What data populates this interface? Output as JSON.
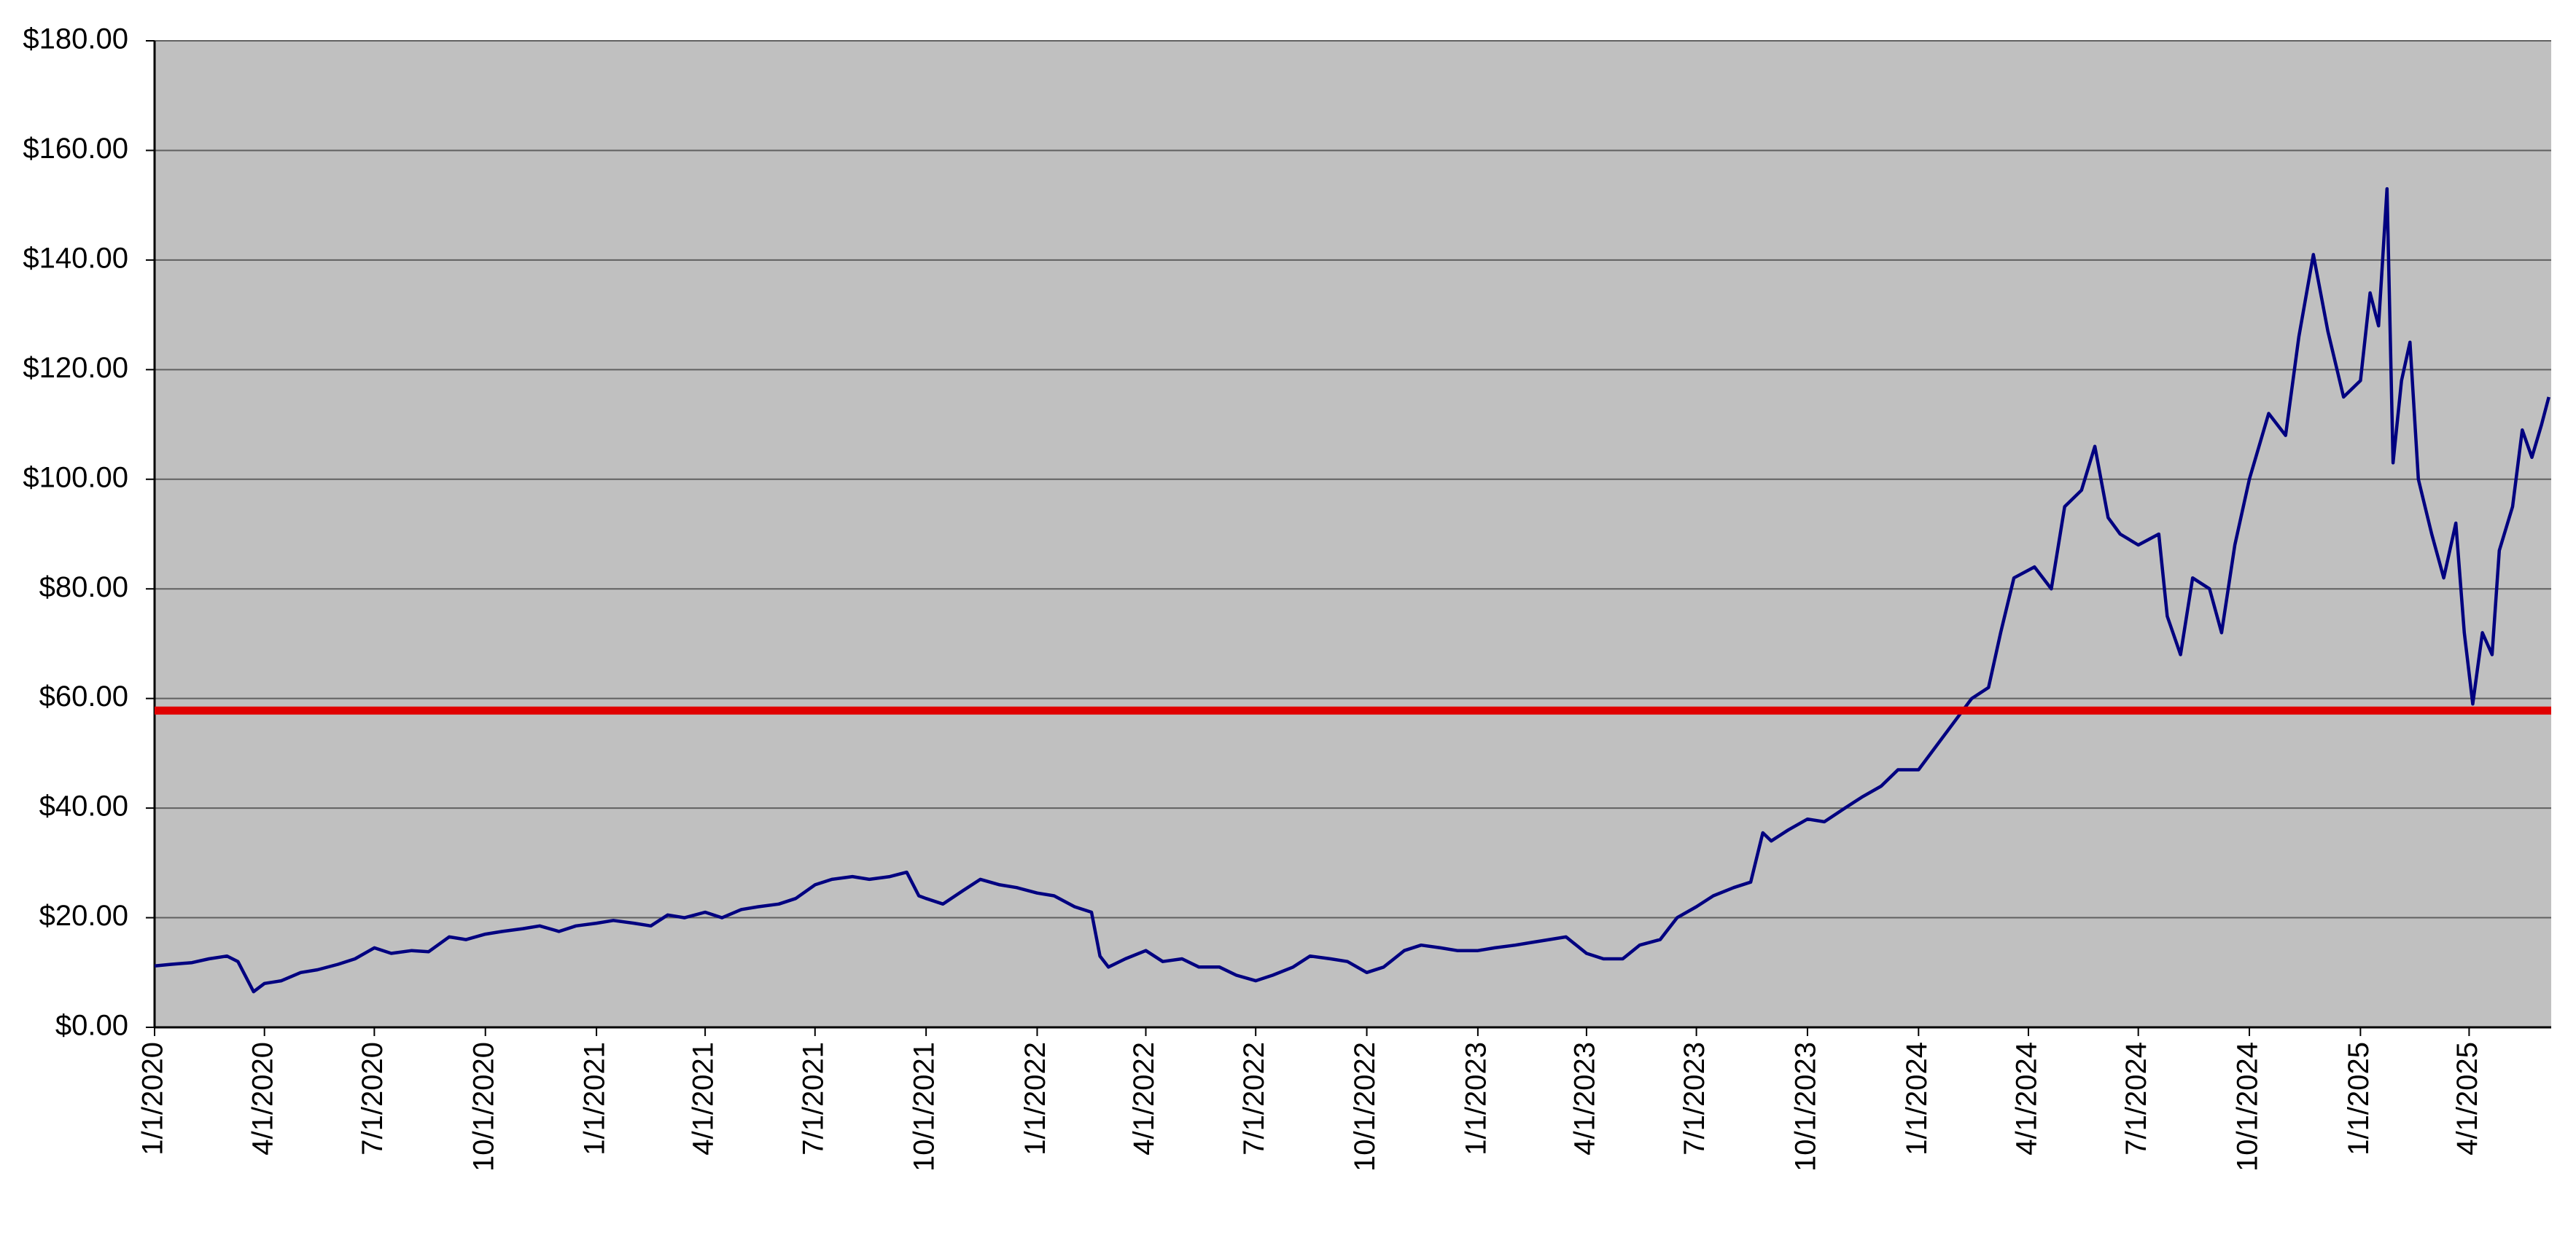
{
  "chart_data": {
    "type": "line",
    "x": [
      "1/1/2020",
      "1/15/2020",
      "2/1/2020",
      "2/15/2020",
      "3/1/2020",
      "3/10/2020",
      "3/23/2020",
      "4/1/2020",
      "4/15/2020",
      "5/1/2020",
      "5/15/2020",
      "6/1/2020",
      "6/15/2020",
      "7/1/2020",
      "7/15/2020",
      "8/1/2020",
      "8/15/2020",
      "9/1/2020",
      "9/15/2020",
      "10/1/2020",
      "10/15/2020",
      "11/1/2020",
      "11/15/2020",
      "12/1/2020",
      "12/15/2020",
      "1/1/2021",
      "1/15/2021",
      "2/1/2021",
      "2/15/2021",
      "3/1/2021",
      "3/15/2021",
      "4/1/2021",
      "4/15/2021",
      "5/1/2021",
      "5/15/2021",
      "6/1/2021",
      "6/15/2021",
      "7/1/2021",
      "7/15/2021",
      "8/1/2021",
      "8/15/2021",
      "9/1/2021",
      "9/15/2021",
      "9/25/2021",
      "10/1/2021",
      "10/15/2021",
      "11/1/2021",
      "11/15/2021",
      "12/1/2021",
      "12/15/2021",
      "1/1/2022",
      "1/15/2022",
      "2/1/2022",
      "2/15/2022",
      "2/22/2022",
      "3/1/2022",
      "3/15/2022",
      "4/1/2022",
      "4/15/2022",
      "5/1/2022",
      "5/15/2022",
      "6/1/2022",
      "6/15/2022",
      "7/1/2022",
      "7/15/2022",
      "8/1/2022",
      "8/15/2022",
      "9/1/2022",
      "9/15/2022",
      "10/1/2022",
      "10/15/2022",
      "11/1/2022",
      "11/15/2022",
      "12/1/2022",
      "12/15/2022",
      "1/1/2023",
      "1/15/2023",
      "2/1/2023",
      "2/15/2023",
      "3/1/2023",
      "3/15/2023",
      "4/1/2023",
      "4/15/2023",
      "5/1/2023",
      "5/15/2023",
      "6/1/2023",
      "6/15/2023",
      "7/1/2023",
      "7/15/2023",
      "8/1/2023",
      "8/15/2023",
      "8/25/2023",
      "9/1/2023",
      "9/15/2023",
      "10/1/2023",
      "10/15/2023",
      "11/1/2023",
      "11/15/2023",
      "12/1/2023",
      "12/15/2023",
      "1/1/2024",
      "2/14/2024",
      "2/28/2024",
      "3/9/2024",
      "3/20/2024",
      "4/6/2024",
      "4/20/2024",
      "5/1/2024",
      "5/15/2024",
      "5/26/2024",
      "6/6/2024",
      "6/16/2024",
      "7/1/2024",
      "7/18/2024",
      "7/25/2024",
      "8/5/2024",
      "8/15/2024",
      "8/29/2024",
      "9/8/2024",
      "9/19/2024",
      "10/1/2024",
      "10/17/2024",
      "10/31/2024",
      "11/11/2024",
      "11/23/2024",
      "12/5/2024",
      "12/18/2024",
      "1/1/2025",
      "1/9/2025",
      "1/16/2025",
      "1/23/2025",
      "1/28/2025",
      "2/4/2025",
      "2/11/2025",
      "2/18/2025",
      "3/1/2025",
      "3/11/2025",
      "3/21/2025",
      "3/28/2025",
      "4/4/2025",
      "4/12/2025",
      "4/20/2025",
      "4/26/2025",
      "5/7/2025",
      "5/15/2025",
      "5/23/2025",
      "5/31/2025",
      "6/6/2025"
    ],
    "values": [
      11.2,
      11.5,
      11.8,
      12.5,
      13.0,
      12.0,
      6.5,
      8.0,
      8.5,
      10.0,
      10.5,
      11.5,
      12.5,
      14.5,
      13.5,
      14.0,
      13.8,
      16.5,
      16.0,
      17.0,
      17.5,
      18.0,
      18.5,
      17.5,
      18.5,
      19.0,
      19.5,
      19.0,
      18.5,
      20.5,
      20.0,
      21.0,
      20.0,
      21.5,
      22.0,
      22.5,
      23.5,
      26.0,
      27.0,
      27.5,
      27.0,
      27.5,
      28.3,
      24.0,
      23.5,
      22.5,
      25.0,
      27.0,
      26.0,
      25.5,
      24.5,
      24.0,
      22.0,
      21.0,
      13.0,
      11.0,
      12.5,
      14.0,
      12.0,
      12.5,
      11.0,
      11.0,
      9.5,
      8.5,
      9.5,
      11.0,
      13.0,
      12.5,
      12.0,
      10.0,
      11.0,
      14.0,
      15.0,
      14.5,
      14.0,
      14.0,
      14.5,
      15.0,
      15.5,
      16.0,
      16.5,
      13.5,
      12.5,
      12.5,
      15.0,
      16.0,
      20.0,
      22.0,
      24.0,
      25.5,
      26.5,
      35.5,
      34.0,
      36.0,
      38.0,
      37.5,
      40.0,
      42.0,
      44.0,
      47.0,
      47.0,
      60.0,
      62.0,
      72.0,
      82.0,
      84.0,
      80.0,
      95.0,
      98.0,
      106.0,
      93.0,
      90.0,
      88.0,
      90.0,
      75.0,
      68.0,
      82.0,
      80.0,
      72.0,
      88.0,
      100.0,
      112.0,
      108.0,
      126.0,
      141.0,
      127.0,
      115.0,
      118.0,
      134.0,
      128.0,
      153.0,
      103.0,
      118.0,
      125.0,
      100.0,
      90.0,
      82.0,
      92.0,
      72.0,
      59.0,
      72.0,
      68.0,
      87.0,
      95.0,
      109.0,
      104.0,
      110.0,
      115.0
    ],
    "color": "#000080",
    "reference_line": {
      "value": 57.8,
      "color": "#e00000"
    },
    "xlim": [
      "1/1/2020",
      "6/8/2025"
    ],
    "xticks": [
      "1/1/2020",
      "4/1/2020",
      "7/1/2020",
      "10/1/2020",
      "1/1/2021",
      "4/1/2021",
      "7/1/2021",
      "10/1/2021",
      "1/1/2022",
      "4/1/2022",
      "7/1/2022",
      "10/1/2022",
      "1/1/2023",
      "4/1/2023",
      "7/1/2023",
      "10/1/2023",
      "1/1/2024",
      "4/1/2024",
      "7/1/2024",
      "10/1/2024",
      "1/1/2025",
      "4/1/2025"
    ],
    "ylim": [
      0,
      180
    ],
    "yticks": [
      {
        "value": 0,
        "label": "$0.00"
      },
      {
        "value": 20,
        "label": "$20.00"
      },
      {
        "value": 40,
        "label": "$40.00"
      },
      {
        "value": 60,
        "label": "$60.00"
      },
      {
        "value": 80,
        "label": "$80.00"
      },
      {
        "value": 100,
        "label": "$100.00"
      },
      {
        "value": 120,
        "label": "$120.00"
      },
      {
        "value": 140,
        "label": "$140.00"
      },
      {
        "value": 160,
        "label": "$160.00"
      },
      {
        "value": 180,
        "label": "$180.00"
      }
    ],
    "grid": true
  }
}
